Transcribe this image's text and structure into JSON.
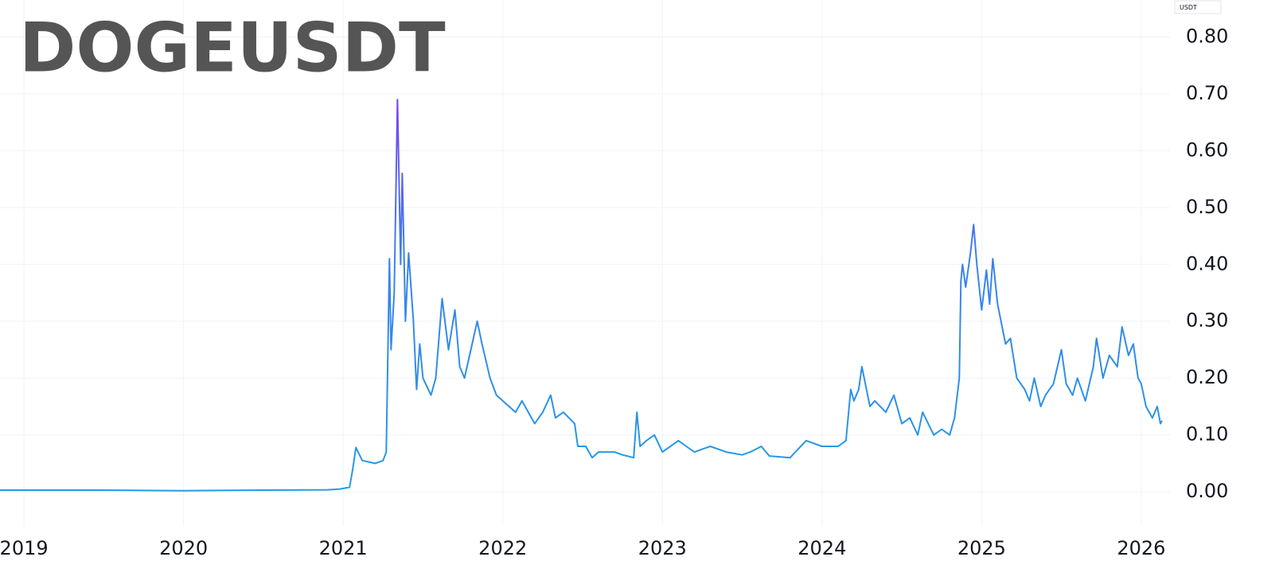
{
  "chart_data": {
    "type": "line",
    "title": "DOGEUSDT",
    "currency": "USDT",
    "x": [
      2018.85,
      2019.5,
      2020.0,
      2020.5,
      2020.9,
      2020.98,
      2021.04,
      2021.06,
      2021.08,
      2021.12,
      2021.2,
      2021.25,
      2021.27,
      2021.29,
      2021.3,
      2021.32,
      2021.34,
      2021.36,
      2021.37,
      2021.39,
      2021.41,
      2021.44,
      2021.46,
      2021.48,
      2021.5,
      2021.55,
      2021.58,
      2021.62,
      2021.66,
      2021.7,
      2021.73,
      2021.76,
      2021.8,
      2021.84,
      2021.87,
      2021.92,
      2021.96,
      2022.0,
      2022.08,
      2022.12,
      2022.2,
      2022.25,
      2022.3,
      2022.33,
      2022.38,
      2022.45,
      2022.47,
      2022.52,
      2022.56,
      2022.6,
      2022.7,
      2022.75,
      2022.82,
      2022.84,
      2022.86,
      2022.9,
      2022.95,
      2023.0,
      2023.1,
      2023.15,
      2023.2,
      2023.3,
      2023.4,
      2023.5,
      2023.55,
      2023.62,
      2023.67,
      2023.8,
      2023.9,
      2024.0,
      2024.1,
      2024.15,
      2024.18,
      2024.2,
      2024.23,
      2024.25,
      2024.3,
      2024.33,
      2024.4,
      2024.45,
      2024.5,
      2024.55,
      2024.6,
      2024.63,
      2024.7,
      2024.75,
      2024.8,
      2024.83,
      2024.86,
      2024.87,
      2024.88,
      2024.9,
      2024.93,
      2024.95,
      2024.97,
      2025.0,
      2025.03,
      2025.05,
      2025.07,
      2025.1,
      2025.15,
      2025.18,
      2025.22,
      2025.27,
      2025.3,
      2025.33,
      2025.37,
      2025.4,
      2025.45,
      2025.5,
      2025.53,
      2025.57,
      2025.6,
      2025.65,
      2025.7,
      2025.72,
      2025.76,
      2025.8,
      2025.85,
      2025.88,
      2025.92,
      2025.95,
      2025.98,
      2026.0,
      2026.03,
      2026.07,
      2026.1,
      2026.12,
      2026.13
    ],
    "values": [
      0.003,
      0.003,
      0.002,
      0.003,
      0.0035,
      0.005,
      0.008,
      0.04,
      0.078,
      0.055,
      0.05,
      0.055,
      0.07,
      0.41,
      0.25,
      0.35,
      0.69,
      0.4,
      0.56,
      0.3,
      0.42,
      0.3,
      0.18,
      0.26,
      0.2,
      0.17,
      0.2,
      0.34,
      0.25,
      0.32,
      0.22,
      0.2,
      0.25,
      0.3,
      0.26,
      0.2,
      0.17,
      0.16,
      0.14,
      0.16,
      0.12,
      0.14,
      0.17,
      0.13,
      0.14,
      0.12,
      0.08,
      0.08,
      0.06,
      0.07,
      0.07,
      0.065,
      0.06,
      0.14,
      0.08,
      0.09,
      0.1,
      0.07,
      0.09,
      0.08,
      0.07,
      0.08,
      0.07,
      0.065,
      0.07,
      0.08,
      0.063,
      0.06,
      0.09,
      0.08,
      0.08,
      0.09,
      0.18,
      0.16,
      0.18,
      0.22,
      0.15,
      0.16,
      0.14,
      0.17,
      0.12,
      0.13,
      0.1,
      0.14,
      0.1,
      0.11,
      0.1,
      0.13,
      0.2,
      0.37,
      0.4,
      0.36,
      0.42,
      0.47,
      0.4,
      0.32,
      0.39,
      0.33,
      0.41,
      0.33,
      0.26,
      0.27,
      0.2,
      0.18,
      0.16,
      0.2,
      0.15,
      0.17,
      0.19,
      0.25,
      0.19,
      0.17,
      0.2,
      0.16,
      0.22,
      0.27,
      0.2,
      0.24,
      0.22,
      0.29,
      0.24,
      0.26,
      0.2,
      0.19,
      0.15,
      0.13,
      0.15,
      0.12,
      0.125
    ],
    "colors": [
      "#1ea0e6",
      "#3b82ea",
      "#a21ff0"
    ],
    "xlim": [
      2018.85,
      2026.18
    ],
    "xticks": [
      2019,
      2020,
      2021,
      2022,
      2023,
      2024,
      2025,
      2026
    ],
    "ylim": [
      -0.06,
      0.865
    ],
    "yticks": [
      {
        "value": 0,
        "label": "0.00"
      },
      {
        "value": 0.1,
        "label": "0.10"
      },
      {
        "value": 0.2,
        "label": "0.20"
      },
      {
        "value": 0.3,
        "label": "0.30"
      },
      {
        "value": 0.4,
        "label": "0.40"
      },
      {
        "value": 0.5,
        "label": "0.50"
      },
      {
        "value": 0.6,
        "label": "0.60"
      },
      {
        "value": 0.7,
        "label": "0.70"
      },
      {
        "value": 0.8,
        "label": "0.80"
      }
    ],
    "grid": true
  }
}
